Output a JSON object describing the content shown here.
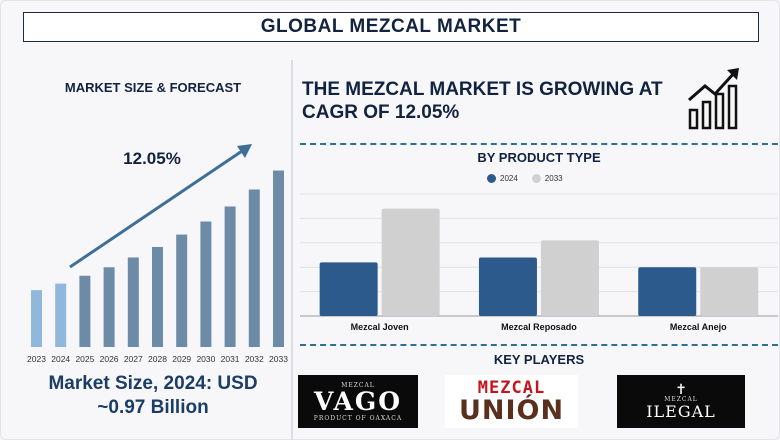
{
  "header": {
    "title": "GLOBAL MEZCAL MARKET"
  },
  "left_panel": {
    "heading": "MARKET SIZE & FORECAST",
    "cagr_label": "12.05%",
    "market_size_line1": "Market Size, 2024: USD",
    "market_size_line2": "~0.97 Billion"
  },
  "right_panel": {
    "cagr_headline": "THE MEZCAL MARKET IS GROWING AT CAGR OF 12.05%",
    "product_type_title": "BY PRODUCT TYPE",
    "key_players_title": "KEY PLAYERS"
  },
  "key_players": {
    "vago": {
      "top": "MEZCAL",
      "name": "VAGO",
      "bottom": "PRODUCT OF OAXACA"
    },
    "union": {
      "top": "MEZCAL",
      "name": "UNIÓN"
    },
    "ilegal": {
      "top": "MEZCAL",
      "name": "ILEGAL"
    }
  },
  "colors": {
    "dark_bar": "#2c5a8c",
    "light_bar": "#d0d0d0",
    "forecast_bar": "#6d8aa6",
    "early_bar": "#8fb8dc",
    "arrow": "#3f6f96"
  },
  "chart_data": [
    {
      "type": "bar",
      "title": "MARKET SIZE & FORECAST",
      "categories": [
        "2023",
        "2024",
        "2025",
        "2026",
        "2027",
        "2028",
        "2029",
        "2030",
        "2031",
        "2032",
        "2033"
      ],
      "values": [
        0.87,
        0.97,
        1.09,
        1.22,
        1.37,
        1.53,
        1.72,
        1.92,
        2.15,
        2.41,
        2.7
      ],
      "annotation": "12.05%",
      "ylim": [
        0,
        2.8
      ]
    },
    {
      "type": "bar",
      "title": "BY PRODUCT TYPE",
      "categories": [
        "Mezcal Joven",
        "Mezcal Reposado",
        "Mezcal Anejo"
      ],
      "series": [
        {
          "name": "2024",
          "values": [
            2.2,
            2.4,
            2.0
          ]
        },
        {
          "name": "2033",
          "values": [
            4.4,
            3.1,
            2.0
          ]
        }
      ],
      "ylim": [
        0,
        5
      ],
      "grid": true,
      "legend": "top-center"
    }
  ]
}
